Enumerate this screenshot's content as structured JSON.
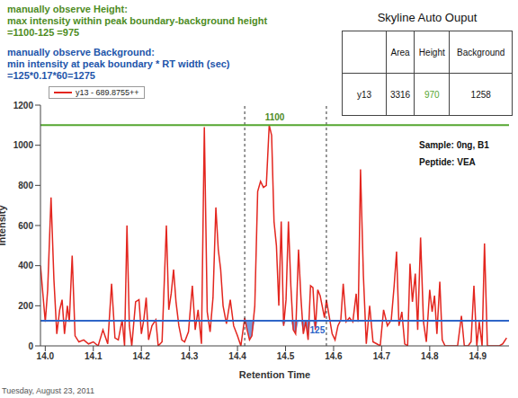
{
  "chart_data": {
    "type": "line",
    "x_label": "Retention Time",
    "y_label": "Intensity",
    "xlim": [
      13.99,
      14.965
    ],
    "xticks": [
      {
        "value": 14,
        "label": "14.0"
      },
      14.1,
      14.2,
      14.3,
      14.4,
      14.5,
      14.6,
      14.7,
      14.8,
      14.9
    ],
    "ylim": [
      0,
      1200
    ],
    "yticks": [
      0,
      200,
      400,
      600,
      800,
      1000,
      1200
    ],
    "legend": "top-left",
    "series": [
      {
        "name": "y13 - 689.8755++",
        "color": "#e3261f",
        "x": [
          13.99,
          14.0,
          14.005,
          14.012,
          14.018,
          14.024,
          14.03,
          14.035,
          14.04,
          14.046,
          14.05,
          14.056,
          14.062,
          14.07,
          14.08,
          14.09,
          14.1,
          14.11,
          14.12,
          14.13,
          14.138,
          14.145,
          14.152,
          14.16,
          14.165,
          14.17,
          14.175,
          14.18,
          14.188,
          14.195,
          14.2,
          14.205,
          14.21,
          14.215,
          14.222,
          14.23,
          14.235,
          14.243,
          14.252,
          14.257,
          14.262,
          14.267,
          14.272,
          14.278,
          14.284,
          14.29,
          14.298,
          14.306,
          14.312,
          14.318,
          14.325,
          14.331,
          14.337,
          14.343,
          14.349,
          14.355,
          14.36,
          14.365,
          14.37,
          14.377,
          14.385,
          14.392,
          14.4,
          14.407,
          14.415,
          14.42,
          14.425,
          14.43,
          14.436,
          14.442,
          14.448,
          14.454,
          14.46,
          14.466,
          14.471,
          14.476,
          14.481,
          14.486,
          14.491,
          14.496,
          14.501,
          14.506,
          14.511,
          14.516,
          14.521,
          14.527,
          14.532,
          14.537,
          14.542,
          14.547,
          14.552,
          14.557,
          14.562,
          14.567,
          14.572,
          14.577,
          14.581,
          14.585,
          14.59,
          14.597,
          14.603,
          14.609,
          14.615,
          14.62,
          14.626,
          14.633,
          14.64,
          14.647,
          14.651,
          14.656,
          14.662,
          14.668,
          14.675,
          14.682,
          14.69,
          14.697,
          14.704,
          14.712,
          14.72,
          14.726,
          14.731,
          14.736,
          14.742,
          14.748,
          14.754,
          14.759,
          14.764,
          14.77,
          14.775,
          14.781,
          14.787,
          14.793,
          14.8,
          14.805,
          14.81,
          14.815,
          14.821,
          14.826,
          14.832,
          14.845,
          14.858,
          14.866,
          14.872,
          14.88,
          14.886,
          14.892,
          14.898,
          14.903,
          14.909,
          14.914,
          14.92,
          14.932,
          14.945,
          14.952,
          14.96
        ],
        "values": [
          400,
          120,
          280,
          740,
          330,
          60,
          180,
          230,
          60,
          200,
          120,
          450,
          50,
          20,
          30,
          10,
          20,
          0,
          80,
          10,
          310,
          40,
          30,
          130,
          0,
          600,
          100,
          0,
          220,
          230,
          60,
          130,
          240,
          30,
          100,
          130,
          0,
          20,
          600,
          180,
          260,
          380,
          220,
          100,
          30,
          20,
          70,
          300,
          80,
          180,
          10,
          1090,
          170,
          70,
          240,
          690,
          480,
          380,
          200,
          110,
          230,
          100,
          50,
          0,
          140,
          80,
          30,
          50,
          200,
          770,
          820,
          790,
          800,
          1100,
          1050,
          620,
          500,
          200,
          620,
          100,
          230,
          620,
          300,
          80,
          60,
          480,
          240,
          60,
          120,
          30,
          300,
          290,
          80,
          280,
          250,
          190,
          140,
          230,
          160,
          60,
          30,
          100,
          130,
          310,
          120,
          140,
          120,
          260,
          120,
          880,
          350,
          10,
          200,
          20,
          10,
          0,
          180,
          100,
          130,
          300,
          470,
          100,
          170,
          10,
          0,
          410,
          220,
          360,
          80,
          540,
          120,
          20,
          280,
          170,
          250,
          60,
          320,
          30,
          0,
          0,
          0,
          150,
          0,
          0,
          20,
          300,
          0,
          120,
          0,
          510,
          0,
          0,
          0,
          10,
          40
        ]
      }
    ],
    "height_line": {
      "y": 1100,
      "label": "1100",
      "color": "#55a630"
    },
    "background_line": {
      "y": 125,
      "label": "125",
      "color": "#2f66c8"
    },
    "peak_boundaries": [
      14.415,
      14.585
    ]
  },
  "notes": [
    {
      "heading": "manually observe Height:",
      "lines": [
        "max intensity within peak boundary-background height",
        "=1100-125 =975"
      ],
      "color": "#4e8c1f"
    },
    {
      "heading": "manually observe Background:",
      "lines": [
        "min intensity at peak boundary * RT width (sec)",
        "=125*0.17*60=1275"
      ],
      "color": "#2255aa"
    }
  ],
  "table": {
    "title": "Skyline Auto Ouput",
    "columns": [
      "Area",
      "Height",
      "Background"
    ],
    "rows": [
      {
        "label": "y13",
        "values": [
          3316,
          970,
          1258
        ]
      }
    ]
  },
  "sample": "Sample: 0ng, B1",
  "peptide": "Peptide: VEA",
  "footer": "Tuesday, August 23, 2011"
}
